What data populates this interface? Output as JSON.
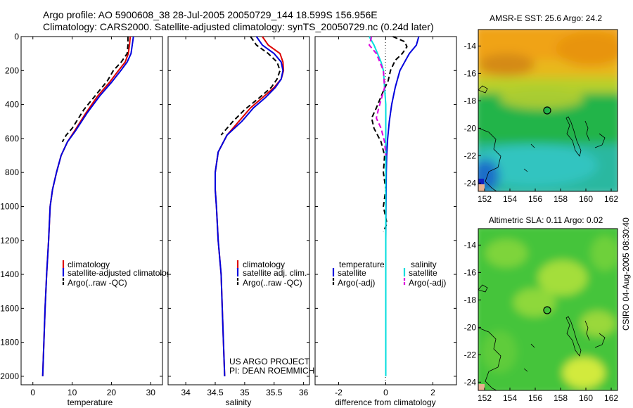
{
  "figure": {
    "title_line1": "Argo profile: AO 5900608_38 28-Jul-2005 20050729_144 18.599S 156.956E",
    "title_line2": "Climatology: CARS2000. Satellite-adjusted climatology: synTS_20050729.nc (0.24d later)",
    "project_line1": "US ARGO PROJECT",
    "project_line2": "PI: DEAN ROEMMICH",
    "side_label": "CSIRO 04-Aug-2005 08:30:40"
  },
  "chart_data": [
    {
      "id": "temperature",
      "type": "line",
      "xlabel": "temperature",
      "ylabel": "",
      "xlim": [
        -3,
        33
      ],
      "ylim": [
        0,
        2050
      ],
      "y_inverted": true,
      "xticks": [
        0,
        10,
        20,
        30
      ],
      "yticks": [
        0,
        200,
        400,
        600,
        800,
        1000,
        1200,
        1400,
        1600,
        1800,
        2000
      ],
      "legend": [
        "climatology",
        "satellite-adjusted climatology",
        "Argo(..raw -QC)"
      ],
      "series": [
        {
          "name": "climatology",
          "color": "#dd0000",
          "dash": "solid",
          "points": [
            [
              24.8,
              0
            ],
            [
              24.6,
              50
            ],
            [
              24.3,
              100
            ],
            [
              23.5,
              150
            ],
            [
              21.8,
              200
            ],
            [
              19.5,
              270
            ],
            [
              16.5,
              350
            ],
            [
              13.5,
              450
            ],
            [
              10.5,
              560
            ],
            [
              8.8,
              620
            ],
            [
              7.2,
              700
            ],
            [
              6.0,
              800
            ],
            [
              5.0,
              900
            ],
            [
              4.4,
              1000
            ],
            [
              4.0,
              1200
            ],
            [
              3.5,
              1400
            ],
            [
              3.1,
              1600
            ],
            [
              2.8,
              1800
            ],
            [
              2.5,
              2000
            ]
          ]
        },
        {
          "name": "satellite-adjusted climatology",
          "color": "#0000dd",
          "dash": "solid",
          "points": [
            [
              25.6,
              0
            ],
            [
              25.3,
              50
            ],
            [
              25.0,
              100
            ],
            [
              24.0,
              150
            ],
            [
              22.4,
              200
            ],
            [
              20.0,
              270
            ],
            [
              17.0,
              350
            ],
            [
              13.8,
              450
            ],
            [
              10.7,
              560
            ],
            [
              8.8,
              620
            ],
            [
              7.2,
              700
            ],
            [
              6.0,
              800
            ],
            [
              5.0,
              900
            ],
            [
              4.4,
              1000
            ],
            [
              4.0,
              1200
            ],
            [
              3.5,
              1400
            ],
            [
              3.1,
              1600
            ],
            [
              2.8,
              1800
            ],
            [
              2.5,
              2000
            ]
          ]
        },
        {
          "name": "Argo(..raw -QC)",
          "color": "#000000",
          "dash": "dashed",
          "points": [
            [
              24.2,
              0
            ],
            [
              24.2,
              50
            ],
            [
              24.0,
              100
            ],
            [
              22.5,
              150
            ],
            [
              20.5,
              200
            ],
            [
              19.0,
              260
            ],
            [
              16.5,
              330
            ],
            [
              13.0,
              430
            ],
            [
              10.0,
              540
            ],
            [
              8.5,
              580
            ],
            [
              7.5,
              620
            ]
          ]
        }
      ]
    },
    {
      "id": "salinity",
      "type": "line",
      "xlabel": "salinity",
      "ylabel": "",
      "xlim": [
        33.7,
        36.1
      ],
      "ylim": [
        0,
        2050
      ],
      "y_inverted": true,
      "xticks": [
        34,
        34.5,
        35,
        35.5,
        36
      ],
      "legend": [
        "climatology",
        "satellite adj. clim.",
        "Argo(..raw -QC)"
      ],
      "series": [
        {
          "name": "climatology",
          "color": "#dd0000",
          "dash": "solid",
          "points": [
            [
              35.3,
              0
            ],
            [
              35.4,
              50
            ],
            [
              35.6,
              100
            ],
            [
              35.65,
              150
            ],
            [
              35.66,
              200
            ],
            [
              35.62,
              250
            ],
            [
              35.5,
              300
            ],
            [
              35.3,
              360
            ],
            [
              35.1,
              420
            ],
            [
              34.9,
              500
            ],
            [
              34.7,
              580
            ],
            [
              34.55,
              680
            ],
            [
              34.5,
              800
            ],
            [
              34.5,
              900
            ],
            [
              34.52,
              1000
            ],
            [
              34.55,
              1200
            ],
            [
              34.6,
              1400
            ],
            [
              34.62,
              1600
            ],
            [
              34.64,
              1800
            ],
            [
              34.66,
              2000
            ]
          ]
        },
        {
          "name": "satellite adj. clim.",
          "color": "#0000dd",
          "dash": "solid",
          "points": [
            [
              35.2,
              0
            ],
            [
              35.3,
              50
            ],
            [
              35.5,
              100
            ],
            [
              35.62,
              150
            ],
            [
              35.65,
              200
            ],
            [
              35.62,
              250
            ],
            [
              35.52,
              300
            ],
            [
              35.35,
              360
            ],
            [
              35.15,
              420
            ],
            [
              34.95,
              500
            ],
            [
              34.7,
              580
            ],
            [
              34.55,
              680
            ],
            [
              34.5,
              800
            ],
            [
              34.5,
              900
            ],
            [
              34.52,
              1000
            ],
            [
              34.55,
              1200
            ],
            [
              34.6,
              1400
            ],
            [
              34.62,
              1600
            ],
            [
              34.64,
              1800
            ],
            [
              34.66,
              2000
            ]
          ]
        },
        {
          "name": "Argo(..raw -QC)",
          "color": "#000000",
          "dash": "dashed",
          "points": [
            [
              35.1,
              0
            ],
            [
              35.2,
              50
            ],
            [
              35.4,
              100
            ],
            [
              35.55,
              150
            ],
            [
              35.6,
              200
            ],
            [
              35.55,
              250
            ],
            [
              35.45,
              300
            ],
            [
              35.25,
              360
            ],
            [
              35.0,
              430
            ],
            [
              34.8,
              500
            ],
            [
              34.6,
              580
            ]
          ]
        }
      ]
    },
    {
      "id": "difference",
      "type": "line",
      "xlabel": "difference from climatology",
      "ylabel": "",
      "xlim": [
        -3,
        3
      ],
      "ylim": [
        0,
        2050
      ],
      "y_inverted": true,
      "xticks": [
        -2,
        0,
        2
      ],
      "legend_headers": [
        "temperature",
        "salinity"
      ],
      "legend": [
        "satellite",
        "Argo(-adj)",
        "satellite",
        "Argo(-adj)"
      ],
      "series": [
        {
          "name": "temperature satellite",
          "color": "#0000dd",
          "dash": "solid",
          "points": [
            [
              1.4,
              0
            ],
            [
              1.3,
              50
            ],
            [
              1.0,
              100
            ],
            [
              0.8,
              150
            ],
            [
              0.6,
              200
            ],
            [
              0.4,
              300
            ],
            [
              0.25,
              400
            ],
            [
              0.15,
              500
            ],
            [
              0.08,
              600
            ],
            [
              0.04,
              700
            ],
            [
              0.02,
              800
            ],
            [
              0.01,
              1000
            ],
            [
              0.0,
              1200
            ]
          ]
        },
        {
          "name": "temperature Argo(-adj)",
          "color": "#000000",
          "dash": "dashed",
          "points": [
            [
              0.3,
              0
            ],
            [
              0.8,
              30
            ],
            [
              0.9,
              60
            ],
            [
              0.7,
              100
            ],
            [
              0.4,
              140
            ],
            [
              0.2,
              200
            ],
            [
              0.1,
              260
            ],
            [
              -0.1,
              320
            ],
            [
              -0.4,
              420
            ],
            [
              -0.6,
              480
            ],
            [
              -0.5,
              540
            ],
            [
              -0.2,
              620
            ],
            [
              -0.05,
              700
            ],
            [
              -0.1,
              800
            ],
            [
              0.0,
              900
            ],
            [
              -0.1,
              1000
            ],
            [
              0.05,
              1100
            ],
            [
              -0.1,
              1150
            ]
          ]
        },
        {
          "name": "salinity satellite",
          "color": "#00dddd",
          "dash": "solid",
          "points": [
            [
              -0.7,
              0
            ],
            [
              -0.5,
              50
            ],
            [
              -0.35,
              100
            ],
            [
              -0.2,
              150
            ],
            [
              -0.1,
              200
            ],
            [
              -0.05,
              300
            ],
            [
              0.0,
              400
            ],
            [
              0.0,
              2000
            ]
          ]
        },
        {
          "name": "salinity Argo(-adj)",
          "color": "#dd00dd",
          "dash": "dashed",
          "points": [
            [
              -0.6,
              0
            ],
            [
              -0.7,
              50
            ],
            [
              -0.4,
              100
            ],
            [
              -0.1,
              200
            ],
            [
              -0.05,
              300
            ],
            [
              -0.3,
              420
            ],
            [
              -0.4,
              480
            ],
            [
              -0.2,
              540
            ],
            [
              -0.05,
              620
            ],
            [
              0.0,
              700
            ]
          ]
        }
      ]
    },
    {
      "id": "sst-map",
      "type": "heatmap",
      "title": "AMSR-E SST: 25.6 Argo: 24.2",
      "xlim": [
        151.5,
        162.5
      ],
      "ylim": [
        -24.6,
        -12.8
      ],
      "xticks": [
        152,
        154,
        156,
        158,
        160,
        162
      ],
      "yticks": [
        -14,
        -16,
        -18,
        -20,
        -22,
        -24
      ],
      "marker": {
        "lon": 156.956,
        "lat": -18.599
      }
    },
    {
      "id": "sla-map",
      "type": "heatmap",
      "title": "Altimetric SLA: 0.11 Argo: 0.02",
      "xlim": [
        151.5,
        162.5
      ],
      "ylim": [
        -24.6,
        -12.8
      ],
      "xticks": [
        152,
        154,
        156,
        158,
        160,
        162
      ],
      "yticks": [
        -14,
        -16,
        -18,
        -20,
        -22,
        -24
      ],
      "marker": {
        "lon": 156.956,
        "lat": -18.599
      }
    }
  ]
}
